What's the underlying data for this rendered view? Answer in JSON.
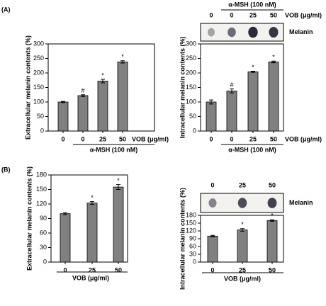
{
  "panel_labels": [
    "(A)",
    "(B)"
  ],
  "chart_data": [
    {
      "type": "bar",
      "y_label": "Extracellular melanin contents (%)",
      "categories": [
        "0",
        "0",
        "25",
        "50"
      ],
      "values": [
        100,
        122,
        172,
        238
      ],
      "errors": [
        2,
        3,
        6,
        4
      ],
      "annotations": [
        null,
        "#",
        "*",
        "*"
      ],
      "color": "#808080",
      "ylim": [
        0,
        300
      ],
      "yticks": [
        0,
        50,
        100,
        150,
        200,
        250,
        300
      ],
      "group_label": "α-MSH (100 nM)",
      "x_unit_label": "VOB (μg/ml)"
    },
    {
      "type": "bar",
      "y_label": "Intracellular melanin contents (%)",
      "categories": [
        "0",
        "0",
        "25",
        "50"
      ],
      "values": [
        100,
        138,
        204,
        238
      ],
      "errors": [
        7,
        7,
        2,
        3
      ],
      "annotations": [
        null,
        "#",
        "*",
        "*"
      ],
      "color": "#808080",
      "ylim": [
        0,
        300
      ],
      "yticks": [
        0,
        50,
        100,
        150,
        200,
        250,
        300
      ],
      "group_label": "α-MSH (100 nM)",
      "x_unit_label": "VOB (μg/ml)",
      "blot": {
        "label": "Melanin",
        "lanes": [
          "0",
          "0",
          "25",
          "50"
        ],
        "group_label": "α-MSH (100 nM)",
        "unit_label": "VOB (μg/ml)"
      }
    },
    {
      "type": "bar",
      "y_label": "Extracellular melanin contents (%)",
      "categories": [
        "0",
        "25",
        "50"
      ],
      "values": [
        100,
        122,
        155
      ],
      "errors": [
        2,
        3,
        5
      ],
      "annotations": [
        null,
        "*",
        "*"
      ],
      "color": "#808080",
      "ylim": [
        0,
        180
      ],
      "yticks": [
        0,
        30,
        60,
        90,
        120,
        150,
        180
      ],
      "x_unit_label": "VOB (μg/ml)"
    },
    {
      "type": "bar",
      "y_label": "Intracellular melanin contents (%)",
      "categories": [
        "0",
        "25",
        "50"
      ],
      "values": [
        100,
        124,
        160
      ],
      "errors": [
        3,
        5,
        3
      ],
      "annotations": [
        null,
        "*",
        "*"
      ],
      "color": "#808080",
      "ylim": [
        0,
        180
      ],
      "yticks": [
        0,
        30,
        60,
        90,
        120,
        150,
        180
      ],
      "x_unit_label": "VOB (μg/ml)",
      "blot": {
        "label": "Melanin",
        "lanes": [
          "0",
          "25",
          "50"
        ]
      }
    }
  ]
}
